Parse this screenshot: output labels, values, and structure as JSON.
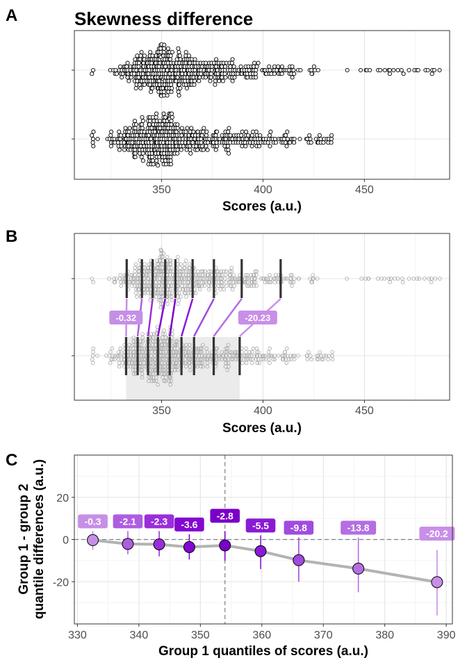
{
  "panels": {
    "a_letter": "A",
    "b_letter": "B",
    "c_letter": "C"
  },
  "chart_data": [
    {
      "type": "scatter",
      "subtype": "beeswarm",
      "panel": "A",
      "title": "Skewness difference",
      "xlabel": "Scores (a.u.)",
      "ylabel": "",
      "xlim": [
        307,
        492
      ],
      "x_ticks": [
        350,
        400,
        450
      ],
      "groups": [
        {
          "name": "",
          "position": "top",
          "min": 316,
          "max": 487,
          "mode": 352,
          "n_points": 520
        },
        {
          "name": "",
          "position": "bottom",
          "min": 316,
          "max": 434,
          "mode": 348,
          "n_points": 520
        }
      ],
      "point_style": {
        "fill": "#ffffff",
        "stroke": "#000000"
      },
      "grid": true
    },
    {
      "type": "scatter",
      "subtype": "shift-function-overlay",
      "panel": "B",
      "xlabel": "Scores (a.u.)",
      "ylabel": "",
      "xlim": [
        307,
        492
      ],
      "x_ticks": [
        350,
        400,
        450
      ],
      "deciles_group1": [
        332.5,
        338.2,
        343.3,
        348.2,
        354.0,
        359.8,
        366.0,
        375.7,
        388.5
      ],
      "deciles_group2": [
        332.8,
        340.3,
        345.6,
        351.8,
        356.8,
        365.3,
        375.8,
        389.5,
        408.7
      ],
      "shaded_range": [
        332.5,
        388.5
      ],
      "labels": [
        {
          "text": "-0.32",
          "decile": 1
        },
        {
          "text": "-20.23",
          "decile": 9
        }
      ],
      "grid": true
    },
    {
      "type": "line",
      "subtype": "shift-function",
      "panel": "C",
      "xlabel": "Group 1 quantiles of scores (a.u.)",
      "ylabel_line1": "Group 1 - group 2",
      "ylabel_line2": "quantile differences (a.u.)",
      "xlim": [
        329.5,
        391
      ],
      "ylim": [
        -40,
        40
      ],
      "x_ticks": [
        330,
        340,
        350,
        360,
        370,
        380,
        390
      ],
      "y_ticks": [
        -20,
        0,
        20
      ],
      "x": [
        332.5,
        338.2,
        343.3,
        348.2,
        354.0,
        359.8,
        366.0,
        375.7,
        388.5
      ],
      "y": [
        -0.3,
        -2.1,
        -2.3,
        -3.6,
        -2.8,
        -5.5,
        -9.8,
        -13.8,
        -20.2
      ],
      "labels": [
        "-0.3",
        "-2.1",
        "-2.3",
        "-3.6",
        "-2.8",
        "-5.5",
        "-9.8",
        "-13.8",
        "-20.2"
      ],
      "ci_lower": [
        -5,
        -7,
        -8,
        -9.5,
        -10,
        -14,
        -20,
        -25,
        -36
      ],
      "ci_upper": [
        4,
        4,
        4,
        2.5,
        4,
        2,
        1,
        1,
        -5
      ],
      "reference_lines": {
        "x": 354.0,
        "y": 0
      },
      "colors": [
        "#c58fe6",
        "#ae5de0",
        "#9a2ed9",
        "#8407d1",
        "#7a00c8",
        "#8a1ad4",
        "#a04cde",
        "#b46ee2",
        "#c88fe8"
      ],
      "line_color": "#b3b3b3",
      "grid": true
    }
  ]
}
